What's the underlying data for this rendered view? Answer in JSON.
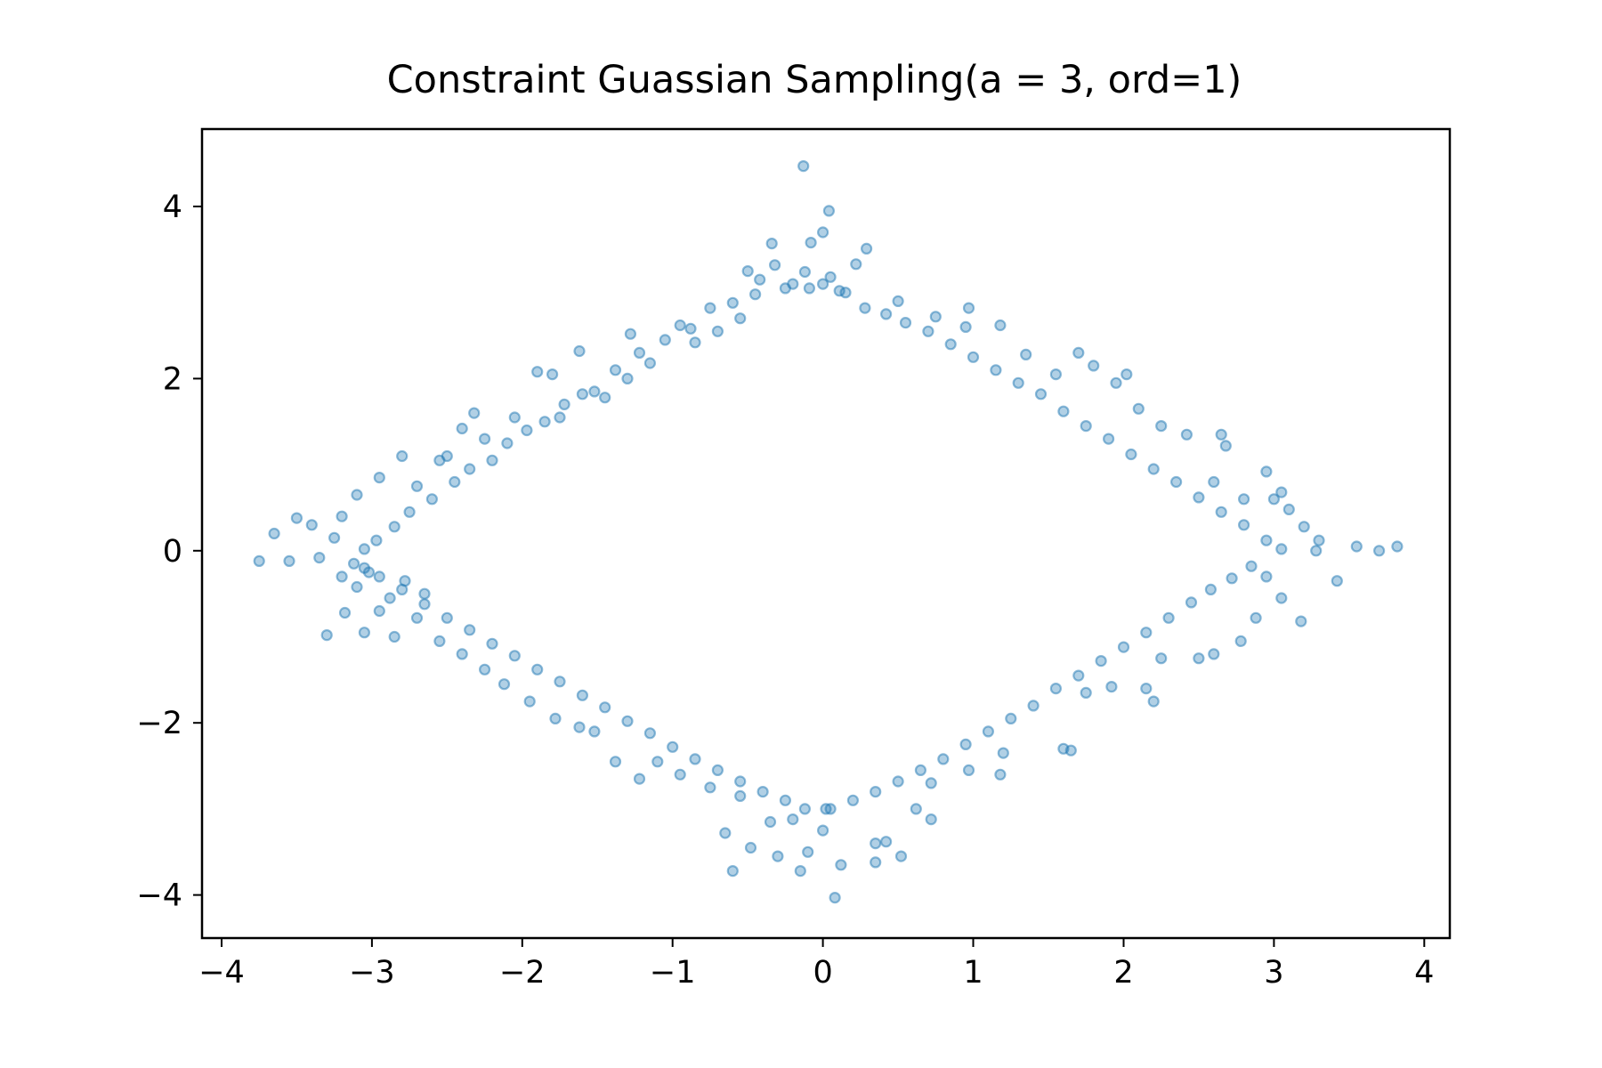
{
  "chart_data": {
    "type": "scatter",
    "title": "Constraint Guassian Sampling(a = 3, ord=1)",
    "xlabel": "",
    "ylabel": "",
    "xlim": [
      -4.13,
      4.17
    ],
    "ylim": [
      -4.5,
      4.9
    ],
    "x_ticks": [
      -4,
      -3,
      -2,
      -1,
      0,
      1,
      2,
      3,
      4
    ],
    "y_ticks": [
      -4,
      -2,
      0,
      2,
      4
    ],
    "x_tick_labels": [
      "−4",
      "−3",
      "−2",
      "−1",
      "0",
      "1",
      "2",
      "3",
      "4"
    ],
    "y_tick_labels": [
      "−4",
      "−2",
      "0",
      "2",
      "4"
    ],
    "grid": false,
    "legend": "none",
    "series": [
      {
        "color": "#1f77b4",
        "points": [
          [
            -0.13,
            4.47
          ],
          [
            0.04,
            3.95
          ],
          [
            0.0,
            3.7
          ],
          [
            -0.08,
            3.58
          ],
          [
            -0.34,
            3.57
          ],
          [
            0.29,
            3.51
          ],
          [
            -0.32,
            3.32
          ],
          [
            -0.12,
            3.24
          ],
          [
            0.05,
            3.18
          ],
          [
            0.0,
            3.1
          ],
          [
            -0.09,
            3.05
          ],
          [
            0.11,
            3.02
          ],
          [
            -0.25,
            3.05
          ],
          [
            -0.45,
            2.98
          ],
          [
            -0.6,
            2.88
          ],
          [
            -0.75,
            2.82
          ],
          [
            -0.95,
            2.62
          ],
          [
            -1.05,
            2.45
          ],
          [
            -1.22,
            2.3
          ],
          [
            -1.38,
            2.1
          ],
          [
            -1.52,
            1.85
          ],
          [
            -1.6,
            1.82
          ],
          [
            -1.72,
            1.7
          ],
          [
            -1.85,
            1.5
          ],
          [
            -1.97,
            1.4
          ],
          [
            -2.1,
            1.25
          ],
          [
            -2.2,
            1.05
          ],
          [
            -2.35,
            0.95
          ],
          [
            -2.45,
            0.8
          ],
          [
            -2.6,
            0.6
          ],
          [
            -2.75,
            0.45
          ],
          [
            -2.85,
            0.28
          ],
          [
            -2.97,
            0.12
          ],
          [
            -3.05,
            0.02
          ],
          [
            -0.55,
            2.7
          ],
          [
            -0.7,
            2.55
          ],
          [
            -0.85,
            2.42
          ],
          [
            -1.15,
            2.18
          ],
          [
            -1.3,
            2.0
          ],
          [
            -1.45,
            1.78
          ],
          [
            -1.9,
            2.08
          ],
          [
            -1.75,
            1.55
          ],
          [
            -2.05,
            1.55
          ],
          [
            -2.25,
            1.3
          ],
          [
            -2.4,
            1.42
          ],
          [
            -2.55,
            1.05
          ],
          [
            -2.7,
            0.75
          ],
          [
            -2.8,
            1.1
          ],
          [
            -2.95,
            0.85
          ],
          [
            -3.1,
            0.65
          ],
          [
            -3.2,
            0.4
          ],
          [
            -3.4,
            0.3
          ],
          [
            -3.5,
            0.38
          ],
          [
            -3.65,
            0.2
          ],
          [
            -3.75,
            -0.12
          ],
          [
            -3.55,
            -0.12
          ],
          [
            -3.35,
            -0.08
          ],
          [
            -3.2,
            -0.3
          ],
          [
            -3.25,
            0.15
          ],
          [
            -3.05,
            -0.2
          ],
          [
            -0.5,
            3.25
          ],
          [
            -0.42,
            3.15
          ],
          [
            -0.2,
            3.1
          ],
          [
            -1.62,
            2.32
          ],
          [
            -1.8,
            2.05
          ],
          [
            -2.32,
            1.6
          ],
          [
            -2.5,
            1.1
          ],
          [
            -0.88,
            2.58
          ],
          [
            -1.28,
            2.52
          ],
          [
            0.22,
            3.33
          ],
          [
            0.15,
            3.0
          ],
          [
            0.28,
            2.82
          ],
          [
            0.42,
            2.75
          ],
          [
            0.55,
            2.65
          ],
          [
            0.7,
            2.55
          ],
          [
            0.85,
            2.4
          ],
          [
            1.0,
            2.25
          ],
          [
            1.15,
            2.1
          ],
          [
            1.3,
            1.95
          ],
          [
            1.45,
            1.82
          ],
          [
            1.6,
            1.62
          ],
          [
            1.75,
            1.45
          ],
          [
            1.9,
            1.3
          ],
          [
            2.05,
            1.12
          ],
          [
            2.2,
            0.95
          ],
          [
            2.35,
            0.8
          ],
          [
            2.5,
            0.62
          ],
          [
            2.65,
            0.45
          ],
          [
            2.8,
            0.3
          ],
          [
            2.95,
            0.12
          ],
          [
            3.05,
            0.02
          ],
          [
            0.5,
            2.9
          ],
          [
            0.75,
            2.72
          ],
          [
            0.95,
            2.6
          ],
          [
            0.97,
            2.82
          ],
          [
            1.18,
            2.62
          ],
          [
            1.35,
            2.28
          ],
          [
            1.55,
            2.05
          ],
          [
            1.7,
            2.3
          ],
          [
            1.8,
            2.15
          ],
          [
            1.95,
            1.95
          ],
          [
            2.02,
            2.05
          ],
          [
            2.1,
            1.65
          ],
          [
            2.25,
            1.45
          ],
          [
            2.42,
            1.35
          ],
          [
            2.65,
            1.35
          ],
          [
            2.68,
            1.22
          ],
          [
            2.6,
            0.8
          ],
          [
            2.8,
            0.6
          ],
          [
            2.95,
            0.92
          ],
          [
            3.05,
            0.68
          ],
          [
            3.1,
            0.48
          ],
          [
            3.0,
            0.6
          ],
          [
            3.2,
            0.28
          ],
          [
            3.3,
            0.12
          ],
          [
            3.28,
            0.0
          ],
          [
            3.55,
            0.05
          ],
          [
            3.7,
            0.0
          ],
          [
            3.82,
            0.05
          ],
          [
            3.42,
            -0.35
          ],
          [
            3.18,
            -0.82
          ],
          [
            2.88,
            -0.78
          ],
          [
            2.78,
            -1.05
          ],
          [
            2.6,
            -1.2
          ],
          [
            2.5,
            -1.25
          ],
          [
            2.25,
            -1.25
          ],
          [
            2.15,
            -1.6
          ],
          [
            2.2,
            -1.75
          ],
          [
            3.05,
            -0.55
          ],
          [
            2.95,
            -0.3
          ],
          [
            2.85,
            -0.18
          ],
          [
            2.72,
            -0.32
          ],
          [
            2.58,
            -0.45
          ],
          [
            2.45,
            -0.6
          ],
          [
            2.3,
            -0.78
          ],
          [
            2.15,
            -0.95
          ],
          [
            2.0,
            -1.12
          ],
          [
            1.85,
            -1.28
          ],
          [
            1.7,
            -1.45
          ],
          [
            1.55,
            -1.6
          ],
          [
            1.4,
            -1.8
          ],
          [
            1.25,
            -1.95
          ],
          [
            1.1,
            -2.1
          ],
          [
            0.95,
            -2.25
          ],
          [
            0.8,
            -2.42
          ],
          [
            0.65,
            -2.55
          ],
          [
            0.5,
            -2.68
          ],
          [
            0.35,
            -2.8
          ],
          [
            0.2,
            -2.9
          ],
          [
            0.05,
            -3.0
          ],
          [
            1.92,
            -1.58
          ],
          [
            1.75,
            -1.65
          ],
          [
            1.65,
            -2.32
          ],
          [
            1.6,
            -2.3
          ],
          [
            1.2,
            -2.35
          ],
          [
            1.18,
            -2.6
          ],
          [
            0.97,
            -2.55
          ],
          [
            0.72,
            -2.7
          ],
          [
            0.62,
            -3.0
          ],
          [
            0.72,
            -3.12
          ],
          [
            0.52,
            -3.55
          ],
          [
            0.42,
            -3.38
          ],
          [
            0.35,
            -3.4
          ],
          [
            0.35,
            -3.62
          ],
          [
            0.12,
            -3.65
          ],
          [
            0.08,
            -4.03
          ],
          [
            0.0,
            -3.25
          ],
          [
            -0.1,
            -3.5
          ],
          [
            -0.15,
            -3.72
          ],
          [
            -0.3,
            -3.55
          ],
          [
            -0.48,
            -3.45
          ],
          [
            -0.6,
            -3.72
          ],
          [
            -0.65,
            -3.28
          ],
          [
            -0.35,
            -3.15
          ],
          [
            -0.2,
            -3.12
          ],
          [
            0.02,
            -3.0
          ],
          [
            -0.12,
            -3.0
          ],
          [
            -0.25,
            -2.9
          ],
          [
            -0.4,
            -2.8
          ],
          [
            -0.55,
            -2.68
          ],
          [
            -0.7,
            -2.55
          ],
          [
            -0.85,
            -2.42
          ],
          [
            -1.0,
            -2.28
          ],
          [
            -1.15,
            -2.12
          ],
          [
            -1.3,
            -1.98
          ],
          [
            -1.45,
            -1.82
          ],
          [
            -1.6,
            -1.68
          ],
          [
            -1.75,
            -1.52
          ],
          [
            -1.9,
            -1.38
          ],
          [
            -2.05,
            -1.22
          ],
          [
            -2.2,
            -1.08
          ],
          [
            -2.35,
            -0.92
          ],
          [
            -2.5,
            -0.78
          ],
          [
            -2.65,
            -0.62
          ],
          [
            -2.8,
            -0.45
          ],
          [
            -2.95,
            -0.3
          ],
          [
            -0.55,
            -2.85
          ],
          [
            -0.75,
            -2.75
          ],
          [
            -0.95,
            -2.6
          ],
          [
            -1.1,
            -2.45
          ],
          [
            -1.22,
            -2.65
          ],
          [
            -1.38,
            -2.45
          ],
          [
            -1.52,
            -2.1
          ],
          [
            -1.62,
            -2.05
          ],
          [
            -1.78,
            -1.95
          ],
          [
            -1.95,
            -1.75
          ],
          [
            -2.12,
            -1.55
          ],
          [
            -2.25,
            -1.38
          ],
          [
            -2.4,
            -1.2
          ],
          [
            -2.55,
            -1.05
          ],
          [
            -2.7,
            -0.78
          ],
          [
            -2.88,
            -0.55
          ],
          [
            -2.95,
            -0.7
          ],
          [
            -3.05,
            -0.95
          ],
          [
            -2.85,
            -1.0
          ],
          [
            -3.3,
            -0.98
          ],
          [
            -3.18,
            -0.72
          ],
          [
            -3.1,
            -0.42
          ],
          [
            -2.78,
            -0.35
          ],
          [
            -2.65,
            -0.5
          ],
          [
            -3.02,
            -0.25
          ],
          [
            -3.12,
            -0.15
          ]
        ]
      }
    ]
  }
}
